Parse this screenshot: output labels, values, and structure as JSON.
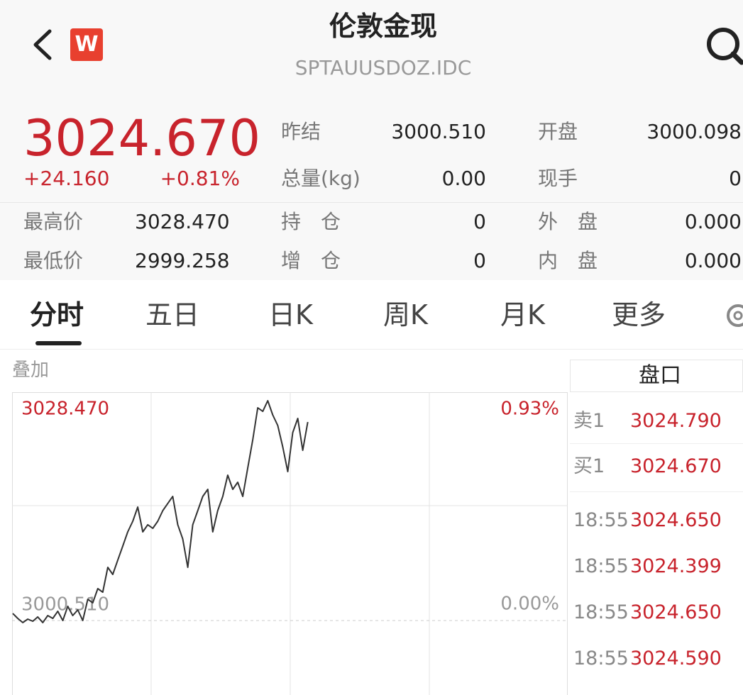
{
  "header": {
    "badge": "W",
    "title": "伦敦金现",
    "code": "SPTAUUSDOZ.IDC"
  },
  "quote": {
    "price": "3024.670",
    "change": "+24.160",
    "change_pct": "+0.81%"
  },
  "stats": [
    [
      {
        "label": "昨结",
        "value": "3000.510"
      },
      {
        "label": "开盘",
        "value": "3000.098"
      }
    ],
    [
      {
        "label": "总量(kg)",
        "value": "0.00"
      },
      {
        "label": "现手",
        "value": "0"
      }
    ],
    [
      {
        "label": "最高价",
        "value": "3028.470"
      },
      {
        "label": "持　仓",
        "value": "0"
      },
      {
        "label": "外　盘",
        "value": "0.000"
      }
    ],
    [
      {
        "label": "最低价",
        "value": "2999.258"
      },
      {
        "label": "增　仓",
        "value": "0"
      },
      {
        "label": "内　盘",
        "value": "0.000"
      }
    ]
  ],
  "tabs": [
    "分时",
    "五日",
    "日K",
    "周K",
    "月K",
    "更多"
  ],
  "overlay": "叠加",
  "chart_data": {
    "type": "line",
    "xlim": [
      0,
      111
    ],
    "ylim": [
      2991.33,
      3028.47
    ],
    "yticks": [
      {
        "value": 3028.47,
        "label": "3028.470"
      },
      {
        "value": 3000.51,
        "label": "3000.510"
      }
    ],
    "y2lim": [
      -0.31,
      0.93
    ],
    "y2ticks": [
      {
        "value": 0.93,
        "label": "0.93%"
      },
      {
        "value": 0,
        "label": "0.00%"
      }
    ],
    "series": [
      {
        "color": "#333333",
        "values": [
          3001.38,
          3000.77,
          3000.25,
          3000.68,
          3000.42,
          3000.95,
          3000.25,
          3001.12,
          3000.77,
          3001.65,
          3000.51,
          3002.26,
          3001.12,
          3001.82,
          3000.51,
          3003.13,
          3002.69,
          3004.44,
          3004.0,
          3007.06,
          3006.19,
          3007.94,
          3009.68,
          3011.43,
          3012.74,
          3014.49,
          3011.43,
          3012.31,
          3011.87,
          3012.74,
          3014.05,
          3014.93,
          3015.8,
          3012.31,
          3010.56,
          3007.06,
          3012.31,
          3014.05,
          3015.8,
          3016.67,
          3011.43,
          3014.05,
          3015.8,
          3018.42,
          3016.67,
          3017.55,
          3015.8,
          3019.3,
          3022.79,
          3026.72,
          3026.28,
          3027.6,
          3025.85,
          3024.54,
          3021.92,
          3018.86,
          3023.66,
          3025.41,
          3021.48,
          3024.97
        ]
      }
    ]
  },
  "order_book": {
    "title": "盘口",
    "asks": [
      {
        "label": "卖1",
        "price": "3024.790"
      }
    ],
    "bids": [
      {
        "label": "买1",
        "price": "3024.670"
      }
    ],
    "trades": [
      {
        "time": "18:55",
        "price": "3024.650"
      },
      {
        "time": "18:55",
        "price": "3024.399"
      },
      {
        "time": "18:55",
        "price": "3024.650"
      },
      {
        "time": "18:55",
        "price": "3024.590"
      }
    ]
  }
}
